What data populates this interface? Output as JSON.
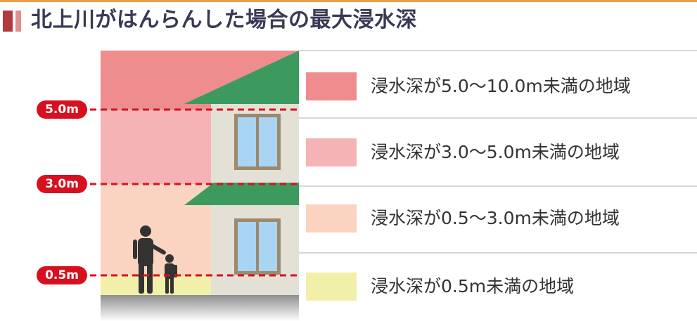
{
  "title": "北上川がはんらんした場合の最大浸水深",
  "levels": [
    {
      "label": "5.0m",
      "depth": 5.0
    },
    {
      "label": "3.0m",
      "depth": 3.0
    },
    {
      "label": "0.5m",
      "depth": 0.5
    }
  ],
  "legend": [
    {
      "label": "浸水深が5.0〜10.0m未満の地域",
      "color": "#ee8c8e"
    },
    {
      "label": "浸水深が3.0〜5.0m未満の地域",
      "color": "#f5b3b5"
    },
    {
      "label": "浸水深が0.5〜3.0m未満の地域",
      "color": "#fad4c1"
    },
    {
      "label": "浸水深が0.5m未満の地域",
      "color": "#f2f0a8"
    }
  ],
  "colors": {
    "guide_line": "#d7101f",
    "roof": "#3c9a5f",
    "wall": "#e3e0d6",
    "window_glass": "#a9d4f2",
    "window_frame": "#9c8a6e",
    "ground": "#9a9a9a",
    "people": "#333333"
  }
}
